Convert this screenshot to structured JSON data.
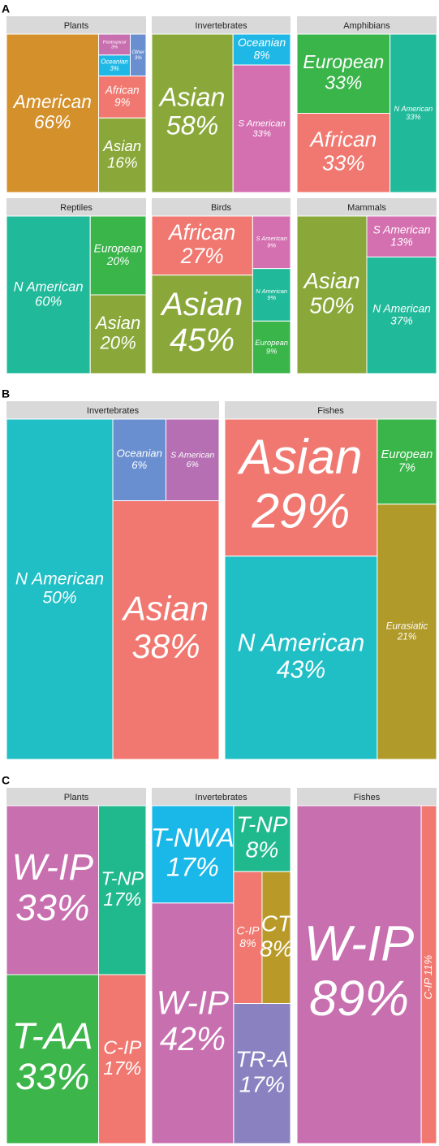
{
  "panel_labels": [
    "A",
    "B",
    "C"
  ],
  "chart_data": [
    {
      "type": "treemap",
      "title": "Plants",
      "categories": [
        "American",
        "Pantropical",
        "Oceanian",
        "Other",
        "African",
        "Asian"
      ],
      "values": [
        66,
        3,
        3,
        3,
        9,
        16
      ],
      "value_labels": [
        "66%",
        "3%",
        "3%",
        "3%",
        "9%",
        "16%"
      ],
      "colors": [
        "#d4902a",
        "#c86fb0",
        "#1fb8e6",
        "#6a8fd0",
        "#f07870",
        "#8aa83a"
      ]
    },
    {
      "type": "treemap",
      "title": "Invertebrates",
      "categories": [
        "Asian",
        "Oceanian",
        "S American"
      ],
      "values": [
        58,
        8,
        33
      ],
      "value_labels": [
        "58%",
        "8%",
        "33%"
      ],
      "colors": [
        "#8aa83a",
        "#1fb8e6",
        "#d46fb0"
      ]
    },
    {
      "type": "treemap",
      "title": "Amphibians",
      "categories": [
        "European",
        "African",
        "N American"
      ],
      "values": [
        33,
        33,
        33
      ],
      "value_labels": [
        "33%",
        "33%",
        "33%"
      ],
      "colors": [
        "#3ab54a",
        "#f07870",
        "#20b99a"
      ]
    },
    {
      "type": "treemap",
      "title": "Reptiles",
      "categories": [
        "N American",
        "European",
        "Asian"
      ],
      "values": [
        60,
        20,
        20
      ],
      "value_labels": [
        "60%",
        "20%",
        "20%"
      ],
      "colors": [
        "#20b99a",
        "#3ab54a",
        "#8aa83a"
      ]
    },
    {
      "type": "treemap",
      "title": "Birds",
      "categories": [
        "African",
        "Asian",
        "S American",
        "N American",
        "European"
      ],
      "values": [
        27,
        45,
        9,
        9,
        9
      ],
      "value_labels": [
        "27%",
        "45%",
        "9%",
        "9%",
        "9%"
      ],
      "colors": [
        "#f07870",
        "#8aa83a",
        "#d46fb0",
        "#20b99a",
        "#3ab54a"
      ]
    },
    {
      "type": "treemap",
      "title": "Mammals",
      "categories": [
        "Asian",
        "S American",
        "N American"
      ],
      "values": [
        50,
        13,
        37
      ],
      "value_labels": [
        "50%",
        "13%",
        "37%"
      ],
      "colors": [
        "#8aa83a",
        "#d46fb0",
        "#20b99a"
      ]
    },
    {
      "type": "treemap",
      "title": "Invertebrates",
      "categories": [
        "N American",
        "Oceanian",
        "S American",
        "Asian"
      ],
      "values": [
        50,
        6,
        6,
        38
      ],
      "value_labels": [
        "50%",
        "6%",
        "6%",
        "38%"
      ],
      "colors": [
        "#20bfc6",
        "#6a8fd0",
        "#b56fb2",
        "#f07870"
      ]
    },
    {
      "type": "treemap",
      "title": "Fishes",
      "categories": [
        "Asian",
        "N American",
        "European",
        "Eurasiatic"
      ],
      "values": [
        29,
        43,
        7,
        21
      ],
      "value_labels": [
        "29%",
        "43%",
        "7%",
        "21%"
      ],
      "colors": [
        "#f07870",
        "#20bfc6",
        "#3ab54a",
        "#b09a2a"
      ]
    },
    {
      "type": "treemap",
      "title": "Plants",
      "categories": [
        "W-IP",
        "T-AA",
        "T-NP",
        "C-IP"
      ],
      "values": [
        33,
        33,
        17,
        17
      ],
      "value_labels": [
        "33%",
        "33%",
        "17%",
        "17%"
      ],
      "colors": [
        "#c86fb0",
        "#3cb54a",
        "#20b98e",
        "#f07870"
      ]
    },
    {
      "type": "treemap",
      "title": "Invertebrates",
      "categories": [
        "T-NWA",
        "W-IP",
        "T-NP",
        "C-IP",
        "CT",
        "TR-A"
      ],
      "values": [
        17,
        42,
        8,
        8,
        8,
        17
      ],
      "value_labels": [
        "17%",
        "42%",
        "8%",
        "8%",
        "8%",
        "17%"
      ],
      "colors": [
        "#1ab8e8",
        "#c86fb0",
        "#20b98e",
        "#f07870",
        "#b99a28",
        "#8a82c0"
      ]
    },
    {
      "type": "treemap",
      "title": "Fishes",
      "categories": [
        "W-IP",
        "C-IP"
      ],
      "values": [
        89,
        11
      ],
      "value_labels": [
        "89%",
        "11%"
      ],
      "colors": [
        "#c86fb0",
        "#f07870"
      ]
    }
  ]
}
